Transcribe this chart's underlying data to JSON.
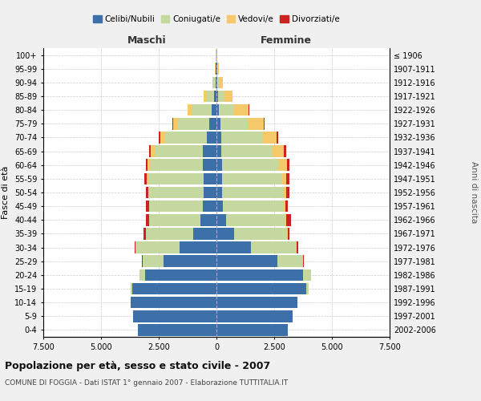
{
  "age_groups": [
    "0-4",
    "5-9",
    "10-14",
    "15-19",
    "20-24",
    "25-29",
    "30-34",
    "35-39",
    "40-44",
    "45-49",
    "50-54",
    "55-59",
    "60-64",
    "65-69",
    "70-74",
    "75-79",
    "80-84",
    "85-89",
    "90-94",
    "95-99",
    "100+"
  ],
  "birth_years": [
    "2002-2006",
    "1997-2001",
    "1992-1996",
    "1987-1991",
    "1982-1986",
    "1977-1981",
    "1972-1976",
    "1967-1971",
    "1962-1966",
    "1957-1961",
    "1952-1956",
    "1947-1951",
    "1942-1946",
    "1937-1941",
    "1932-1936",
    "1927-1931",
    "1922-1926",
    "1917-1921",
    "1912-1916",
    "1907-1911",
    "≤ 1906"
  ],
  "maschi": {
    "celibe": [
      3400,
      3600,
      3700,
      3650,
      3100,
      2300,
      1600,
      1000,
      700,
      600,
      550,
      550,
      580,
      580,
      430,
      300,
      200,
      100,
      50,
      25,
      15
    ],
    "coniugato": [
      2,
      4,
      8,
      45,
      220,
      900,
      1900,
      2050,
      2200,
      2300,
      2350,
      2400,
      2300,
      2100,
      1800,
      1350,
      830,
      320,
      90,
      25,
      8
    ],
    "vedovo": [
      1,
      1,
      2,
      3,
      5,
      8,
      12,
      15,
      18,
      25,
      45,
      70,
      100,
      160,
      210,
      220,
      210,
      120,
      45,
      10,
      5
    ],
    "divorziato": [
      0,
      1,
      2,
      3,
      8,
      18,
      40,
      80,
      130,
      120,
      110,
      110,
      90,
      75,
      55,
      25,
      10,
      5,
      2,
      1,
      0
    ]
  },
  "femmine": {
    "nubile": [
      3100,
      3300,
      3500,
      3900,
      3750,
      2650,
      1500,
      750,
      420,
      290,
      250,
      230,
      230,
      220,
      200,
      160,
      100,
      65,
      30,
      20,
      10
    ],
    "coniugata": [
      2,
      4,
      12,
      80,
      330,
      1100,
      1950,
      2300,
      2550,
      2600,
      2650,
      2600,
      2450,
      2200,
      1800,
      1200,
      680,
      270,
      70,
      15,
      5
    ],
    "vedova": [
      1,
      2,
      3,
      5,
      10,
      15,
      22,
      35,
      55,
      85,
      130,
      200,
      360,
      510,
      620,
      700,
      620,
      370,
      170,
      60,
      20
    ],
    "divorziata": [
      0,
      1,
      2,
      5,
      12,
      30,
      55,
      80,
      190,
      130,
      130,
      140,
      110,
      85,
      65,
      22,
      10,
      5,
      2,
      1,
      0
    ]
  },
  "colors": {
    "celibe_nubile": "#3d6fa8",
    "coniugato": "#c5d8a0",
    "vedovo": "#f5c96a",
    "divorziato": "#cc2222"
  },
  "xlim": 7500,
  "title": "Popolazione per età, sesso e stato civile - 2007",
  "subtitle": "COMUNE DI FOGGIA - Dati ISTAT 1° gennaio 2007 - Elaborazione TUTTITALIA.IT",
  "ylabel_left": "Fasce di età",
  "ylabel_right": "Anni di nascita",
  "xlabel_maschi": "Maschi",
  "xlabel_femmine": "Femmine",
  "legend_labels": [
    "Celibi/Nubili",
    "Coniugati/e",
    "Vedovi/e",
    "Divorziati/e"
  ],
  "bg_color": "#f0f0f0",
  "plot_bg": "#ffffff"
}
